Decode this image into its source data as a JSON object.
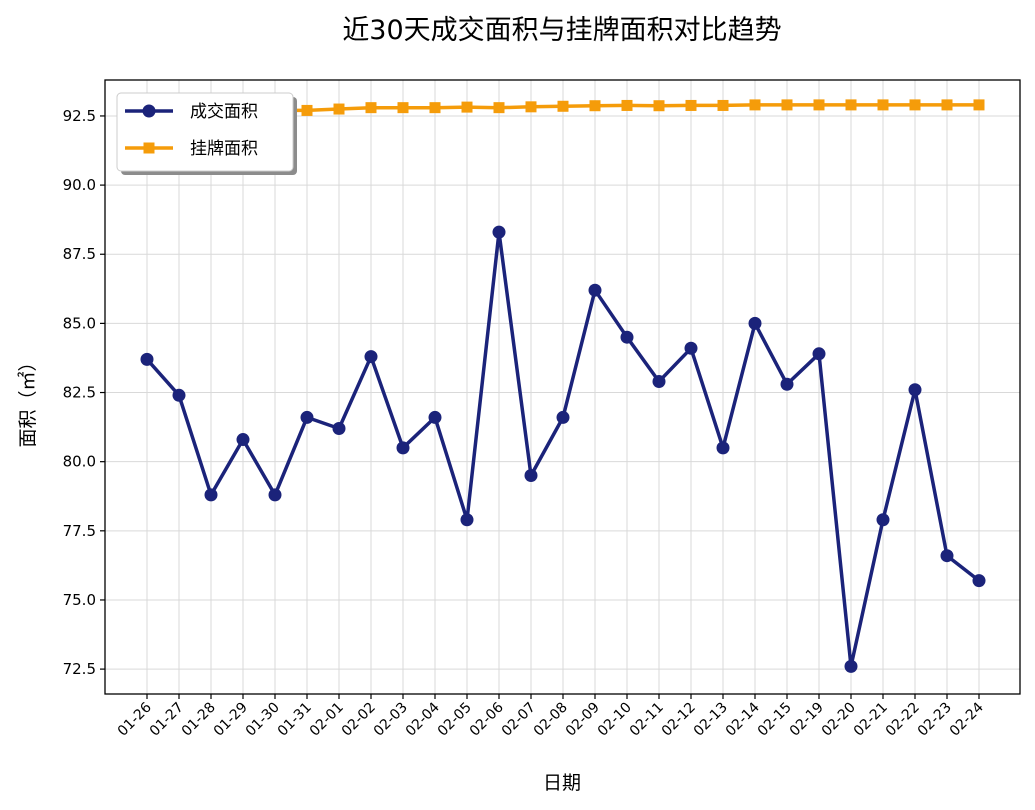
{
  "chart_data": {
    "type": "line",
    "title": "近30天成交面积与挂牌面积对比趋势",
    "xlabel": "日期",
    "ylabel": "面积（㎡）",
    "ylim": [
      71.6,
      93.8
    ],
    "yticks": [
      "72.5",
      "75.0",
      "77.5",
      "80.0",
      "82.5",
      "85.0",
      "87.5",
      "90.0",
      "92.5"
    ],
    "grid": true,
    "legend_position": "top-left",
    "categories": [
      "01-26",
      "01-27",
      "01-28",
      "01-29",
      "01-30",
      "01-31",
      "02-01",
      "02-02",
      "02-03",
      "02-04",
      "02-05",
      "02-06",
      "02-07",
      "02-08",
      "02-09",
      "02-10",
      "02-11",
      "02-12",
      "02-13",
      "02-14",
      "02-15",
      "02-19",
      "02-20",
      "02-21",
      "02-22",
      "02-23",
      "02-24"
    ],
    "series": [
      {
        "name": "成交面积",
        "color": "#1b237a",
        "marker": "circle",
        "values": [
          83.7,
          82.4,
          78.8,
          80.8,
          78.8,
          81.6,
          81.2,
          83.8,
          80.5,
          81.6,
          77.9,
          88.3,
          79.5,
          81.6,
          86.2,
          84.5,
          82.9,
          84.1,
          80.5,
          85.0,
          82.8,
          83.9,
          72.6,
          77.9,
          82.6,
          76.6,
          75.7
        ]
      },
      {
        "name": "挂牌面积",
        "color": "#f59c0a",
        "marker": "square",
        "values": [
          92.7,
          92.7,
          92.7,
          92.7,
          92.7,
          92.7,
          92.75,
          92.8,
          92.8,
          92.8,
          92.82,
          92.8,
          92.83,
          92.85,
          92.87,
          92.88,
          92.87,
          92.88,
          92.88,
          92.9,
          92.9,
          92.9,
          92.9,
          92.9,
          92.9,
          92.9,
          92.9
        ]
      }
    ]
  }
}
